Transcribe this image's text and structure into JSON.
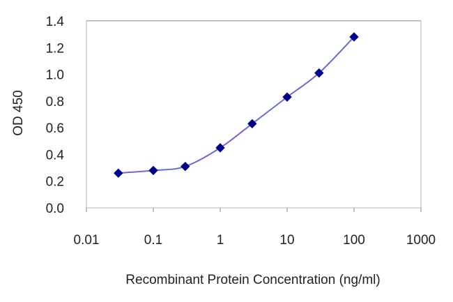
{
  "chart_data": {
    "type": "line",
    "xscale": "log",
    "xlabel": "Recombinant Protein Concentration (ng/ml)",
    "ylabel": "OD 450",
    "x_ticks": [
      {
        "value": 0.01,
        "label": "0.01"
      },
      {
        "value": 0.1,
        "label": "0.1"
      },
      {
        "value": 1,
        "label": "1"
      },
      {
        "value": 10,
        "label": "10"
      },
      {
        "value": 100,
        "label": "100"
      },
      {
        "value": 1000,
        "label": "1000"
      }
    ],
    "y_ticks": [
      {
        "value": 0.0,
        "label": "0.0"
      },
      {
        "value": 0.2,
        "label": "0.2"
      },
      {
        "value": 0.4,
        "label": "0.4"
      },
      {
        "value": 0.6,
        "label": "0.6"
      },
      {
        "value": 0.8,
        "label": "0.8"
      },
      {
        "value": 1.0,
        "label": "1.0"
      },
      {
        "value": 1.2,
        "label": "1.2"
      },
      {
        "value": 1.4,
        "label": "1.4"
      }
    ],
    "xlim": [
      0.01,
      1000
    ],
    "ylim": [
      0,
      1.4
    ],
    "grid": "horizontal",
    "series": [
      {
        "x": [
          0.03,
          0.1,
          0.3,
          1,
          3,
          10,
          30,
          100
        ],
        "y": [
          0.26,
          0.28,
          0.31,
          0.45,
          0.63,
          0.83,
          1.01,
          1.28
        ],
        "color": "#00008b",
        "line_color": "#6a6ad6"
      }
    ]
  }
}
